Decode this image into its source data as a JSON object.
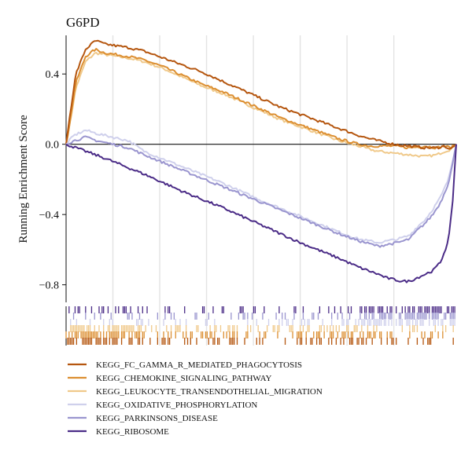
{
  "chart_data": {
    "type": "line",
    "title": "G6PD",
    "xlabel": "",
    "ylabel": "Running Enrichment Score",
    "xlim": [
      0,
      1
    ],
    "ylim": [
      -0.9,
      0.62
    ],
    "yticks": [
      0.4,
      0.0,
      -0.4,
      -0.8
    ],
    "ytick_labels": [
      "0.4",
      "0.0",
      "−0.4",
      "−0.8"
    ],
    "grid": "vertical",
    "legend_position": "bottom",
    "series": [
      {
        "name": "KEGG_FC_GAMMA_R_MEDIATED_PHAGOCYTOSIS",
        "color": "#b5560f",
        "x": [
          0,
          0.01,
          0.025,
          0.05,
          0.075,
          0.1,
          0.13,
          0.16,
          0.2,
          0.25,
          0.3,
          0.35,
          0.4,
          0.45,
          0.5,
          0.55,
          0.6,
          0.65,
          0.7,
          0.75,
          0.78,
          0.8,
          0.84,
          0.88,
          0.92,
          0.95,
          0.97,
          0.985,
          1.0
        ],
        "y": [
          0,
          0.17,
          0.4,
          0.54,
          0.59,
          0.57,
          0.56,
          0.55,
          0.53,
          0.49,
          0.45,
          0.41,
          0.36,
          0.31,
          0.26,
          0.21,
          0.17,
          0.13,
          0.09,
          0.05,
          0.03,
          0.02,
          0.0,
          -0.01,
          -0.02,
          -0.02,
          -0.01,
          -0.03,
          0.0
        ]
      },
      {
        "name": "KEGG_CHEMOKINE_SIGNALING_PATHWAY",
        "color": "#dc8f32",
        "x": [
          0,
          0.01,
          0.025,
          0.05,
          0.075,
          0.1,
          0.13,
          0.16,
          0.2,
          0.25,
          0.3,
          0.35,
          0.4,
          0.45,
          0.5,
          0.55,
          0.6,
          0.65,
          0.7,
          0.75,
          0.78,
          0.8,
          0.84,
          0.88,
          0.92,
          0.95,
          0.97,
          0.985,
          1.0
        ],
        "y": [
          0,
          0.13,
          0.35,
          0.5,
          0.54,
          0.52,
          0.51,
          0.5,
          0.48,
          0.44,
          0.39,
          0.34,
          0.3,
          0.25,
          0.2,
          0.15,
          0.11,
          0.07,
          0.03,
          0.0,
          -0.01,
          -0.01,
          -0.01,
          -0.02,
          -0.01,
          -0.02,
          -0.01,
          -0.02,
          0.0
        ]
      },
      {
        "name": "KEGG_LEUKOCYTE_TRANSENDOTHELIAL_MIGRATION",
        "color": "#f0c98a",
        "x": [
          0,
          0.01,
          0.025,
          0.05,
          0.075,
          0.1,
          0.13,
          0.16,
          0.2,
          0.25,
          0.3,
          0.35,
          0.4,
          0.45,
          0.5,
          0.55,
          0.6,
          0.65,
          0.7,
          0.75,
          0.78,
          0.8,
          0.84,
          0.88,
          0.92,
          0.95,
          0.97,
          0.985,
          1.0
        ],
        "y": [
          0,
          0.12,
          0.32,
          0.47,
          0.52,
          0.51,
          0.5,
          0.49,
          0.47,
          0.43,
          0.38,
          0.33,
          0.29,
          0.24,
          0.19,
          0.14,
          0.1,
          0.06,
          0.02,
          -0.01,
          -0.03,
          -0.04,
          -0.05,
          -0.06,
          -0.07,
          -0.06,
          -0.04,
          -0.03,
          0.0
        ]
      },
      {
        "name": "KEGG_OXIDATIVE_PHOSPHORYLATION",
        "color": "#cfd0ec",
        "x": [
          0,
          0.02,
          0.05,
          0.08,
          0.12,
          0.16,
          0.2,
          0.3,
          0.4,
          0.5,
          0.6,
          0.7,
          0.75,
          0.8,
          0.85,
          0.88,
          0.9,
          0.92,
          0.94,
          0.96,
          0.98,
          0.99,
          1.0
        ],
        "y": [
          0,
          0.05,
          0.08,
          0.06,
          0.04,
          0.02,
          -0.04,
          -0.13,
          -0.22,
          -0.32,
          -0.41,
          -0.5,
          -0.54,
          -0.56,
          -0.54,
          -0.52,
          -0.47,
          -0.43,
          -0.37,
          -0.3,
          -0.2,
          -0.1,
          0.0
        ]
      },
      {
        "name": "KEGG_PARKINSONS_DISEASE",
        "color": "#9a95cf",
        "x": [
          0,
          0.02,
          0.05,
          0.08,
          0.12,
          0.16,
          0.2,
          0.3,
          0.4,
          0.5,
          0.6,
          0.7,
          0.75,
          0.8,
          0.85,
          0.88,
          0.9,
          0.92,
          0.94,
          0.96,
          0.98,
          0.99,
          1.0
        ],
        "y": [
          0,
          0.02,
          0.04,
          0.02,
          0.0,
          -0.02,
          -0.06,
          -0.15,
          -0.24,
          -0.33,
          -0.42,
          -0.51,
          -0.55,
          -0.58,
          -0.56,
          -0.54,
          -0.49,
          -0.45,
          -0.4,
          -0.33,
          -0.22,
          -0.12,
          0.0
        ]
      },
      {
        "name": "KEGG_RIBOSOME",
        "color": "#4b2c87",
        "x": [
          0,
          0.05,
          0.1,
          0.2,
          0.3,
          0.4,
          0.5,
          0.6,
          0.7,
          0.75,
          0.8,
          0.82,
          0.84,
          0.86,
          0.88,
          0.9,
          0.92,
          0.94,
          0.96,
          0.98,
          0.99,
          1.0
        ],
        "y": [
          0,
          -0.04,
          -0.08,
          -0.17,
          -0.27,
          -0.36,
          -0.46,
          -0.56,
          -0.65,
          -0.7,
          -0.74,
          -0.76,
          -0.77,
          -0.78,
          -0.78,
          -0.76,
          -0.74,
          -0.72,
          -0.67,
          -0.55,
          -0.35,
          0.0
        ]
      }
    ]
  }
}
